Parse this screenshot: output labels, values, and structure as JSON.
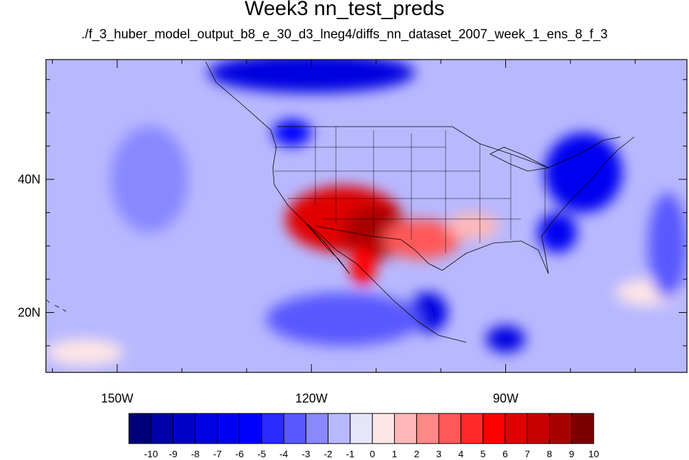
{
  "title": "Week3 nn_test_preds",
  "subtitle": "./f_3_huber_model_output_b8_e_30_d3_lneg4/diffs_nn_dataset_2007_week_1_ens_8_f_3",
  "map": {
    "lon_range": [
      -161,
      -62
    ],
    "lat_range": [
      11,
      58
    ],
    "lat_ticks": [
      {
        "value": 40,
        "label": "40N"
      },
      {
        "value": 20,
        "label": "20N"
      }
    ],
    "lon_ticks": [
      {
        "value": -150,
        "label": "150W"
      },
      {
        "value": -120,
        "label": "120W"
      },
      {
        "value": -90,
        "label": "90W"
      }
    ],
    "background_value": -1
  },
  "colorbar": {
    "labels": [
      "-10",
      "-9",
      "-8",
      "-7",
      "-6",
      "-5",
      "-4",
      "-3",
      "-2",
      "-1",
      "0",
      "1",
      "2",
      "3",
      "4",
      "5",
      "6",
      "7",
      "8",
      "9",
      "10"
    ],
    "colors": [
      "#00007a",
      "#0000a8",
      "#0000c8",
      "#0000e0",
      "#0000f0",
      "#0000ff",
      "#2a2aff",
      "#5858ff",
      "#8888ff",
      "#b8b8ff",
      "#e6e6fa",
      "#ffe6e6",
      "#ffb8b8",
      "#ff8888",
      "#ff5858",
      "#ff2a2a",
      "#ff0000",
      "#e00000",
      "#c80000",
      "#a80000",
      "#7a0000"
    ]
  },
  "fields": [
    {
      "lon": -115,
      "lat": 34,
      "rx": 9,
      "ry": 5,
      "value": 7
    },
    {
      "lon": -110,
      "lat": 32,
      "rx": 5,
      "ry": 4,
      "value": 9
    },
    {
      "lon": -103,
      "lat": 31,
      "rx": 6,
      "ry": 3,
      "value": 4
    },
    {
      "lon": -95,
      "lat": 33,
      "rx": 4,
      "ry": 2,
      "value": 2
    },
    {
      "lon": -112,
      "lat": 27,
      "rx": 2,
      "ry": 3,
      "value": 6
    },
    {
      "lon": -78,
      "lat": 41,
      "rx": 6,
      "ry": 6,
      "value": -6
    },
    {
      "lon": -82,
      "lat": 32,
      "rx": 3,
      "ry": 3,
      "value": -6
    },
    {
      "lon": -120,
      "lat": 56,
      "rx": 16,
      "ry": 3,
      "value": -7
    },
    {
      "lon": -123,
      "lat": 47,
      "rx": 3,
      "ry": 2,
      "value": -5
    },
    {
      "lon": -102,
      "lat": 20,
      "rx": 3,
      "ry": 3,
      "value": -7
    },
    {
      "lon": -90,
      "lat": 16,
      "rx": 3,
      "ry": 2,
      "value": -7
    },
    {
      "lon": -115,
      "lat": 19,
      "rx": 12,
      "ry": 4,
      "value": -3
    },
    {
      "lon": -145,
      "lat": 40,
      "rx": 6,
      "ry": 8,
      "value": -2
    },
    {
      "lon": -155,
      "lat": 14,
      "rx": 6,
      "ry": 2,
      "value": 1
    },
    {
      "lon": -68,
      "lat": 23,
      "rx": 5,
      "ry": 2,
      "value": 1
    },
    {
      "lon": -65,
      "lat": 30,
      "rx": 3,
      "ry": 8,
      "value": -3
    }
  ]
}
